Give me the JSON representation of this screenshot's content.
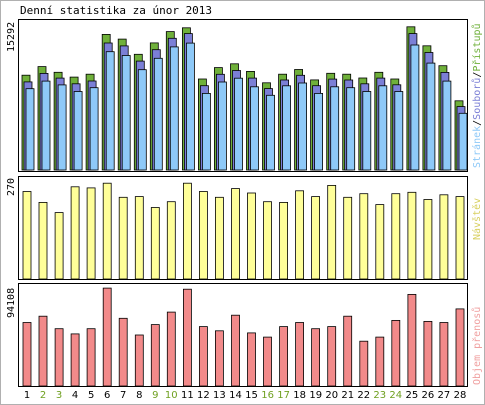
{
  "title": "Denní statistika za únor 2013",
  "colors": {
    "background": "#ffffff",
    "frame": "#000000",
    "pages": "#6fb03a",
    "files": "#7b7fd6",
    "hits": "#8ec9f8",
    "visits": "#ffff99",
    "bandwidth": "#f28a8a",
    "weekday_label": "#000000",
    "weekend_label": "#6fa020",
    "legend_visits": "#d8d060",
    "legend_bandwidth": "#f0a0a0"
  },
  "legend": {
    "hits": "Stránek",
    "files": "Souborů",
    "pages": "Přístupů",
    "visits": "Návštěv",
    "bandwidth": "Objem přenosů"
  },
  "chart_data": [
    {
      "type": "bar",
      "panel": "hits",
      "ymax_label": "15292",
      "ylim": [
        0,
        15292
      ],
      "categories": [
        "1",
        "2",
        "3",
        "4",
        "5",
        "6",
        "7",
        "8",
        "9",
        "10",
        "11",
        "12",
        "13",
        "14",
        "15",
        "16",
        "17",
        "18",
        "19",
        "20",
        "21",
        "22",
        "23",
        "24",
        "25",
        "26",
        "27",
        "28"
      ],
      "series": [
        {
          "name": "Přístupů",
          "values": [
            10000,
            10900,
            10300,
            9800,
            10100,
            14300,
            13800,
            12200,
            13400,
            14600,
            15000,
            9600,
            10800,
            11200,
            10400,
            9200,
            10100,
            10600,
            9500,
            10200,
            10100,
            9700,
            10300,
            9600,
            15100,
            13100,
            11000,
            7300
          ]
        },
        {
          "name": "Souborů",
          "values": [
            9500,
            10400,
            9900,
            9300,
            9600,
            13600,
            13300,
            11700,
            12900,
            14100,
            14600,
            9100,
            10300,
            10700,
            9900,
            8800,
            9700,
            10200,
            9100,
            9800,
            9700,
            9300,
            9900,
            9200,
            14600,
            12600,
            10500,
            6900
          ]
        },
        {
          "name": "Stránek",
          "values": [
            9000,
            9800,
            9400,
            8700,
            9100,
            12900,
            12500,
            11000,
            12200,
            13400,
            13800,
            8500,
            9700,
            10100,
            9200,
            8300,
            9300,
            9600,
            8500,
            9200,
            9100,
            8700,
            9300,
            8700,
            13600,
            11700,
            9800,
            6400
          ]
        }
      ]
    },
    {
      "type": "bar",
      "panel": "visits",
      "ymax_label": "270",
      "ylim": [
        0,
        270
      ],
      "categories": [
        "1",
        "2",
        "3",
        "4",
        "5",
        "6",
        "7",
        "8",
        "9",
        "10",
        "11",
        "12",
        "13",
        "14",
        "15",
        "16",
        "17",
        "18",
        "19",
        "20",
        "21",
        "22",
        "23",
        "24",
        "25",
        "26",
        "27",
        "28"
      ],
      "series": [
        {
          "name": "Návštěv",
          "values": [
            241,
            211,
            183,
            254,
            251,
            264,
            225,
            227,
            197,
            213,
            264,
            241,
            225,
            249,
            237,
            213,
            211,
            243,
            227,
            258,
            225,
            235,
            205,
            235,
            239,
            219,
            232,
            227
          ]
        }
      ]
    },
    {
      "type": "bar",
      "panel": "bandwidth",
      "ymax_label": "94108",
      "ylim": [
        0,
        94108
      ],
      "categories": [
        "1",
        "2",
        "3",
        "4",
        "5",
        "6",
        "7",
        "8",
        "9",
        "10",
        "11",
        "12",
        "13",
        "14",
        "15",
        "16",
        "17",
        "18",
        "19",
        "20",
        "21",
        "22",
        "23",
        "24",
        "25",
        "26",
        "27",
        "28"
      ],
      "series": [
        {
          "name": "Objem přenosů",
          "values": [
            61000,
            67000,
            55000,
            50000,
            55000,
            94000,
            65000,
            49000,
            59000,
            71000,
            93000,
            57000,
            53000,
            68000,
            51000,
            47000,
            57000,
            61000,
            55000,
            57000,
            67000,
            43000,
            47000,
            63000,
            88000,
            62000,
            61000,
            74000
          ]
        }
      ]
    }
  ],
  "weekend_days": [
    2,
    3,
    9,
    10,
    16,
    17,
    23,
    24
  ]
}
